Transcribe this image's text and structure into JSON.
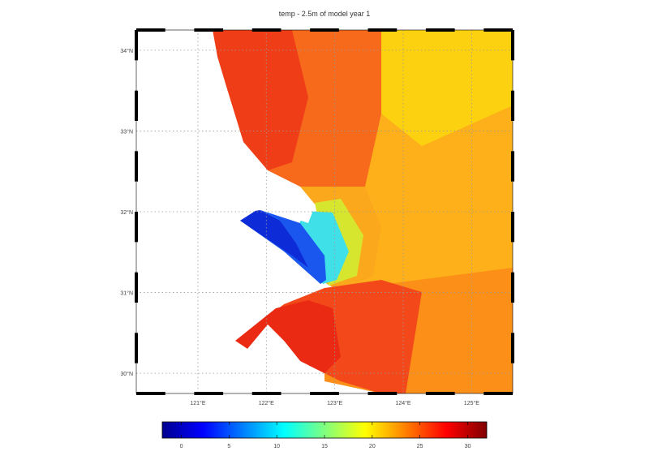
{
  "figure": {
    "title": "temp - 2.5m of model year 1"
  },
  "map": {
    "lon_ticks": [
      "121°E",
      "122°E",
      "123°E",
      "124°E",
      "125°E"
    ],
    "lat_ticks": [
      "34°N",
      "33°N",
      "32°N",
      "31°N",
      "30°N"
    ],
    "lon_range": [
      120.1,
      125.6
    ],
    "lat_range": [
      29.75,
      34.25
    ]
  },
  "colorbar": {
    "ticks": [
      "0",
      "5",
      "10",
      "15",
      "20",
      "25",
      "30"
    ],
    "range": [
      -2,
      32
    ],
    "colormap": "jet"
  },
  "colors": {
    "land": "#ffffff",
    "frame": "#000000",
    "grid": "#9a9a9a"
  }
}
